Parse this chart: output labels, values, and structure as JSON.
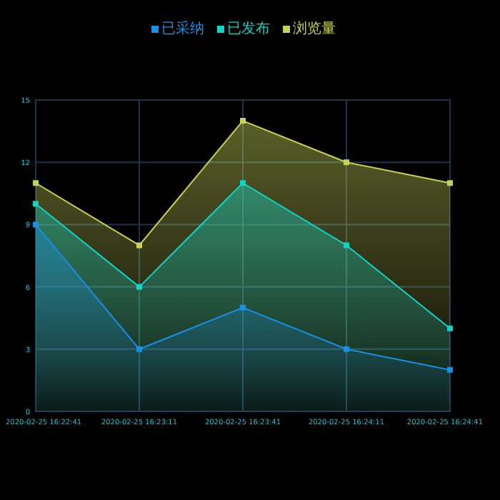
{
  "chart_data": {
    "type": "area",
    "categories": [
      "2020-02-25 16:22:41",
      "2020-02-25 16:23:11",
      "2020-02-25 16:23:41",
      "2020-02-25 16:24:11",
      "2020-02-25 16:24:41"
    ],
    "series": [
      {
        "name": "已采纳",
        "color": "#1a8fe3",
        "values": [
          9,
          3,
          5,
          3,
          2
        ]
      },
      {
        "name": "已发布",
        "color": "#14d2c4",
        "values": [
          10,
          6,
          11,
          8,
          4
        ]
      },
      {
        "name": "浏览量",
        "color": "#c8d25a",
        "values": [
          11,
          8,
          14,
          12,
          11
        ]
      }
    ],
    "ylim": [
      0,
      15
    ],
    "yticks": [
      0,
      3,
      6,
      9,
      12,
      15
    ],
    "grid": true,
    "legend": "top",
    "marker": "square"
  }
}
